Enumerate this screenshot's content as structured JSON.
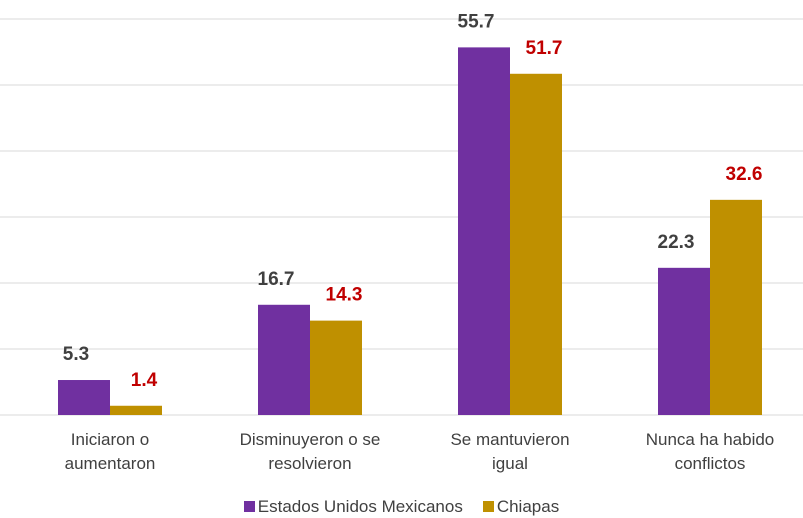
{
  "chart_data": {
    "type": "bar",
    "categories": [
      "Iniciaron o aumentaron",
      "Disminuyeron o se resolvieron",
      "Se mantuvieron igual",
      "Nunca ha habido conflictos"
    ],
    "series": [
      {
        "name": "Estados Unidos Mexicanos",
        "color": "#7030a0",
        "label_color": "#404040",
        "values": [
          5.3,
          16.7,
          55.7,
          22.3
        ]
      },
      {
        "name": "Chiapas",
        "color": "#bf9000",
        "label_color": "#c00000",
        "values": [
          1.4,
          14.3,
          51.7,
          32.6
        ]
      }
    ],
    "ylim": [
      0,
      60
    ],
    "yticks": [
      0,
      10,
      20,
      30,
      40,
      50,
      60
    ],
    "grid": true,
    "legend": "bottom"
  }
}
